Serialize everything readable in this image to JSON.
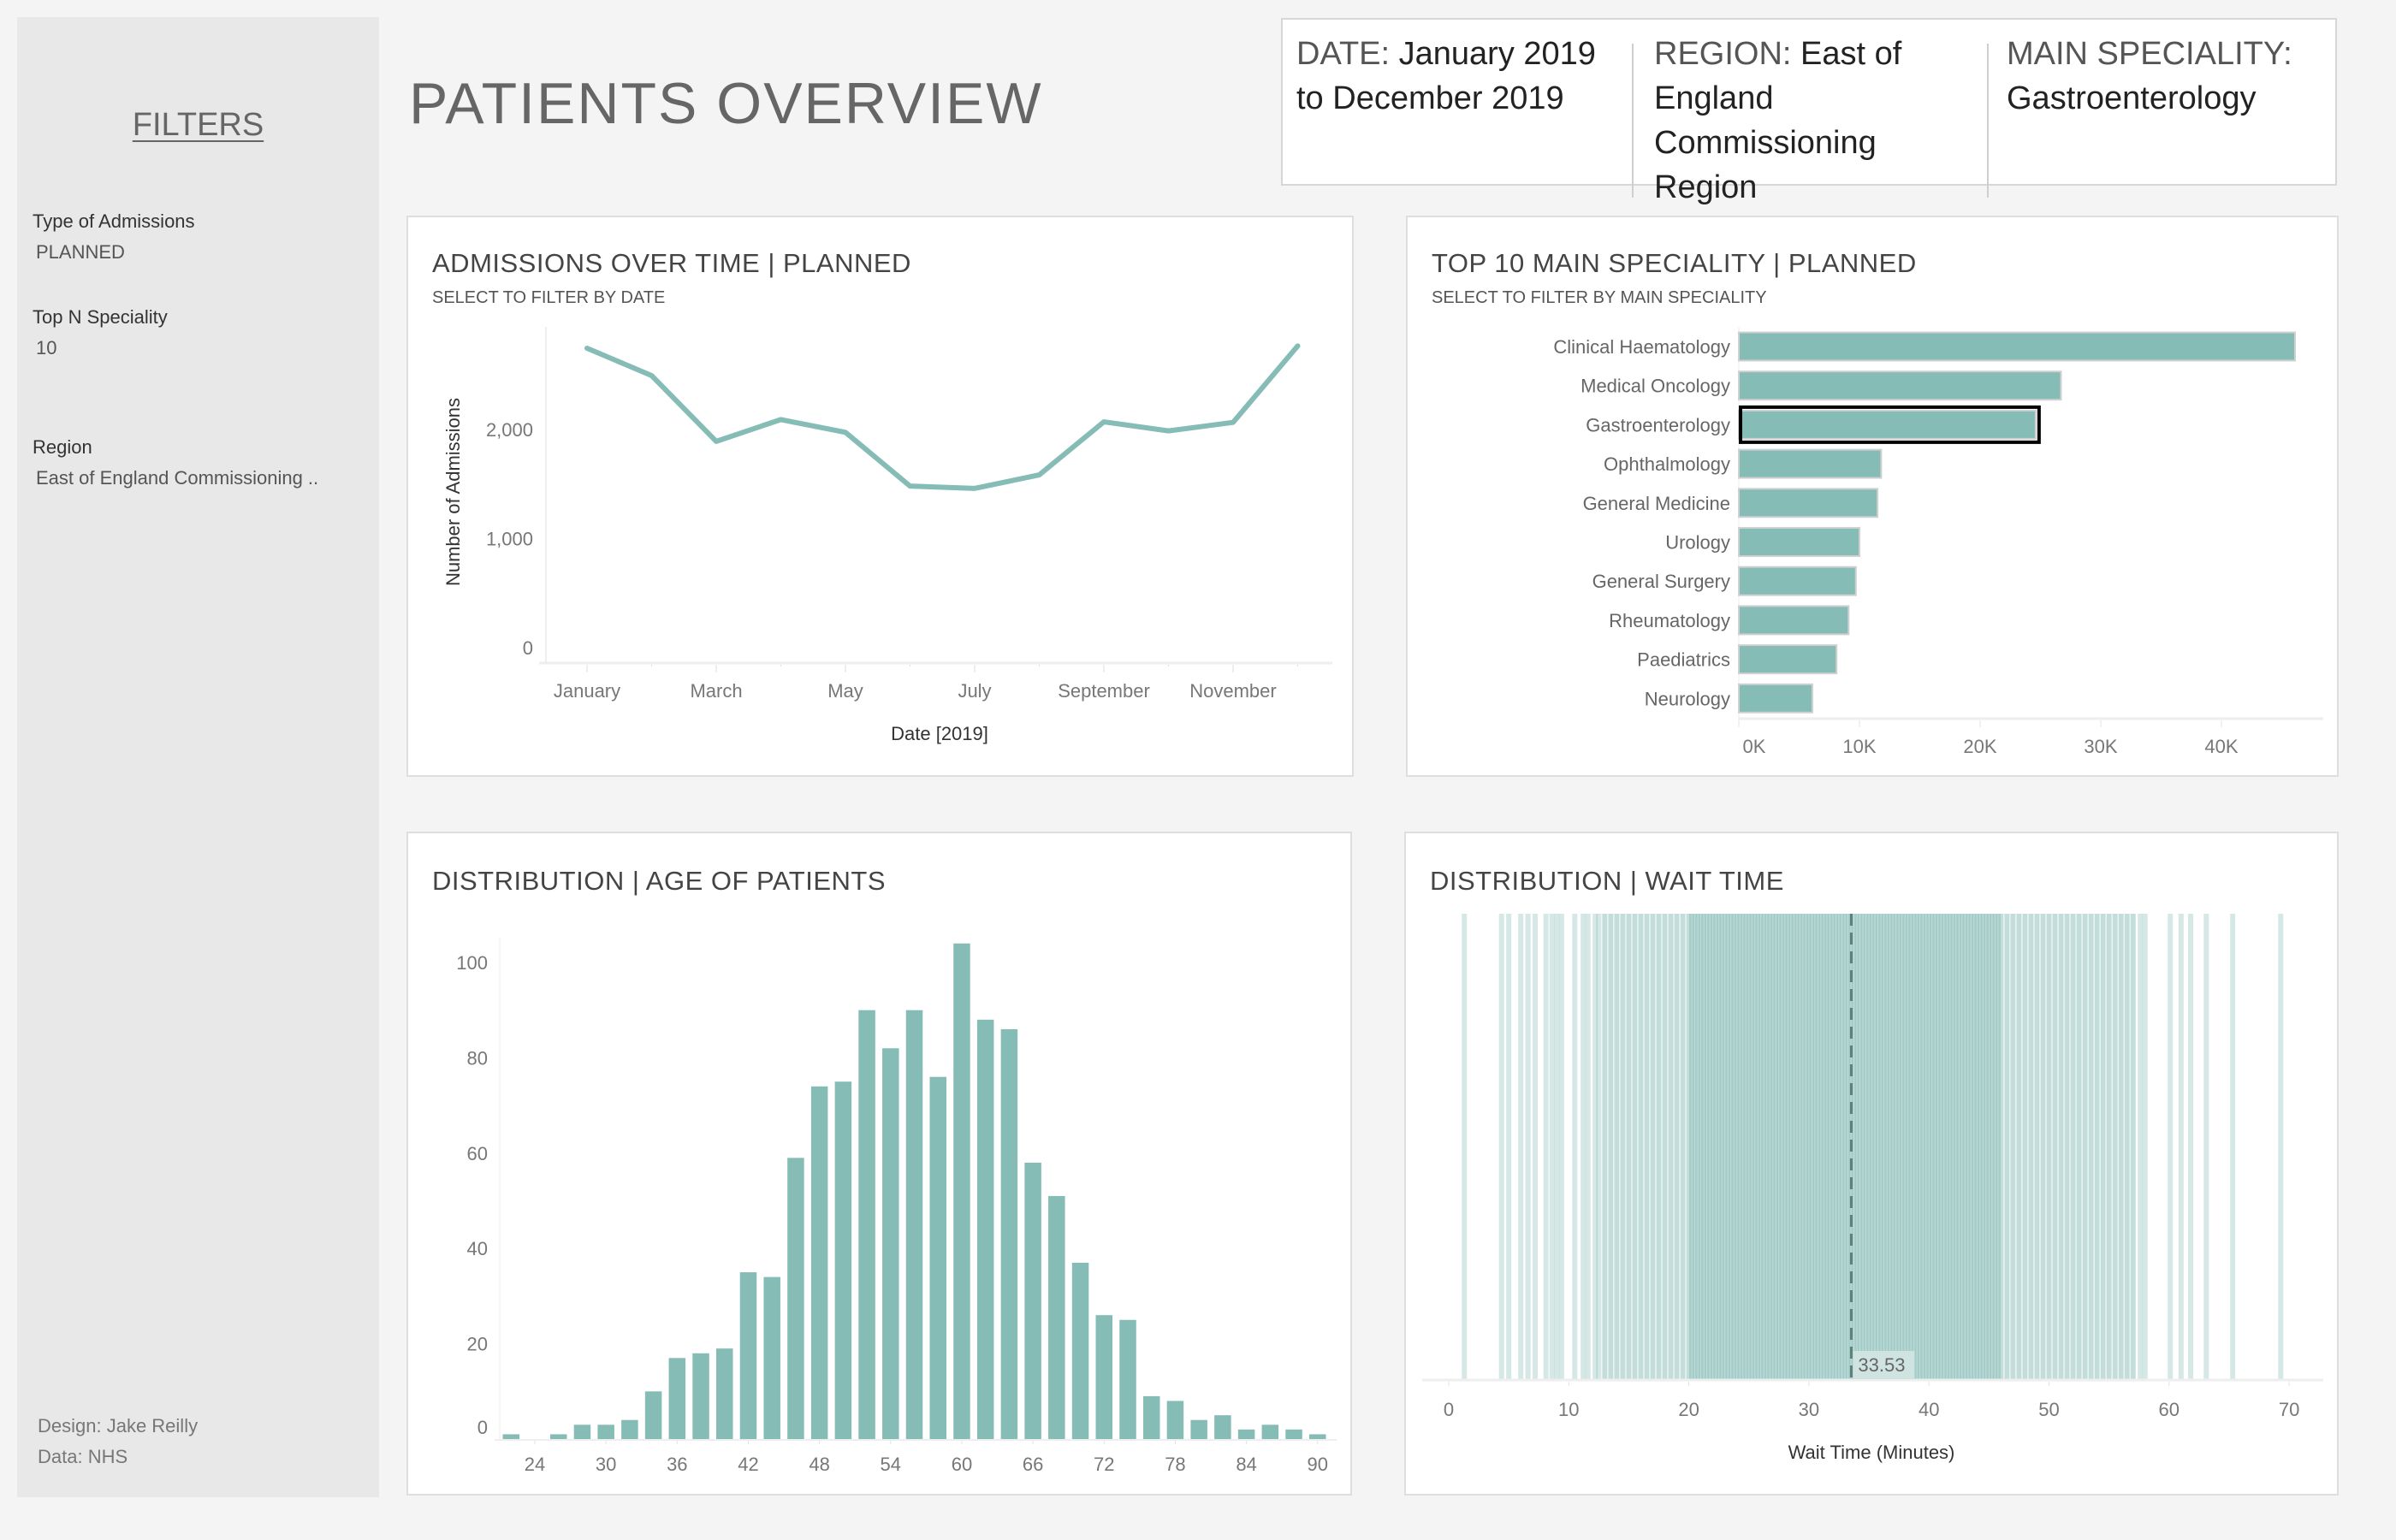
{
  "page": {
    "title": "PATIENTS OVERVIEW"
  },
  "sidebar": {
    "title": "FILTERS",
    "filters": [
      {
        "label": "Type of Admissions",
        "value": "PLANNED"
      },
      {
        "label": "Top N Speciality",
        "value": "10"
      },
      {
        "label": "Region",
        "value": "East of England Commissioning .."
      }
    ],
    "footer": {
      "design": "Design: Jake Reilly",
      "data": "Data: NHS"
    }
  },
  "header": {
    "date": {
      "label": "DATE: ",
      "value": "January 2019 to December 2019"
    },
    "region": {
      "label": "REGION: ",
      "value": "East of England Commissioning Region"
    },
    "speciality": {
      "label": "MAIN SPECIALITY: ",
      "value": "Gastroenterology"
    }
  },
  "colors": {
    "accent": "#86bcb6",
    "selected_outline": "#000000",
    "mean_line": "#5f7f7c"
  },
  "panels": {
    "admissions": {
      "title": "ADMISSIONS OVER TIME | PLANNED",
      "subtitle": "SELECT TO FILTER BY DATE"
    },
    "speciality": {
      "title": "TOP 10 MAIN SPECIALITY | PLANNED",
      "subtitle": "SELECT TO FILTER BY MAIN SPECIALITY"
    },
    "age": {
      "title": "DISTRIBUTION | AGE OF PATIENTS"
    },
    "wait": {
      "title": "DISTRIBUTION | WAIT TIME"
    }
  },
  "chart_data": [
    {
      "id": "admissions",
      "type": "line",
      "x": [
        "January",
        "February",
        "March",
        "April",
        "May",
        "June",
        "July",
        "August",
        "September",
        "October",
        "November",
        "December"
      ],
      "x_tick_labels": [
        "January",
        "March",
        "May",
        "July",
        "September",
        "November"
      ],
      "values": [
        2745,
        2494,
        1891,
        2091,
        1974,
        1481,
        1460,
        1584,
        2070,
        1987,
        2065,
        2766
      ],
      "xlabel": "Date [2019]",
      "ylabel": "Number of Admissions",
      "y_ticks": [
        0,
        1000,
        2000
      ],
      "y_tick_labels": [
        "0",
        "1,000",
        "2,000"
      ],
      "ylim": [
        0,
        2900
      ],
      "grid": false
    },
    {
      "id": "speciality",
      "type": "bar",
      "orientation": "horizontal",
      "categories": [
        "Clinical Haematology",
        "Medical Oncology",
        "Gastroenterology",
        "Ophthalmology",
        "General Medicine",
        "Urology",
        "General Surgery",
        "Rheumatology",
        "Paediatrics",
        "Neurology"
      ],
      "values": [
        46100,
        26700,
        24600,
        11800,
        11500,
        10000,
        9700,
        9100,
        8100,
        6100
      ],
      "selected": "Gastroenterology",
      "x_ticks": [
        0,
        10000,
        20000,
        30000,
        40000
      ],
      "x_tick_labels": [
        "0K",
        "10K",
        "20K",
        "30K",
        "40K"
      ],
      "xlim": [
        0,
        47000
      ],
      "grid": false
    },
    {
      "id": "age",
      "type": "bar",
      "categories": [
        22,
        24,
        26,
        28,
        30,
        32,
        34,
        36,
        38,
        40,
        42,
        44,
        46,
        48,
        50,
        52,
        54,
        56,
        58,
        60,
        62,
        64,
        66,
        68,
        70,
        72,
        74,
        76,
        78,
        80,
        82,
        84,
        86,
        88,
        90
      ],
      "values": [
        1,
        0,
        1,
        3,
        3,
        4,
        10,
        17,
        18,
        19,
        35,
        34,
        59,
        74,
        75,
        90,
        82,
        90,
        76,
        104,
        88,
        86,
        58,
        51,
        37,
        26,
        25,
        9,
        8,
        4,
        5,
        2,
        3,
        2,
        1
      ],
      "x_ticks": [
        24,
        30,
        36,
        42,
        48,
        54,
        60,
        66,
        72,
        78,
        84,
        90
      ],
      "y_ticks": [
        0,
        20,
        40,
        60,
        80,
        100
      ],
      "ylim": [
        0,
        105
      ],
      "grid": false
    },
    {
      "id": "wait",
      "type": "strip",
      "xlabel": "Wait Time (Minutes)",
      "x_ticks": [
        0,
        10,
        20,
        30,
        40,
        50,
        60,
        70
      ],
      "xlim": [
        -1.5,
        72
      ],
      "mean": 33.53,
      "mean_label": "33.53",
      "values": [
        1.3,
        4.4,
        5.0,
        6.0,
        6.6,
        7.2,
        8.1,
        8.6,
        9.0,
        9.4,
        10.5,
        11.2,
        11.6,
        12.2,
        12.5,
        13,
        13.5,
        14,
        14.5,
        15,
        15.5,
        16,
        16.5,
        17,
        17.5,
        18,
        18.5,
        19,
        19.5,
        20,
        20.5,
        21,
        21.5,
        22,
        22.5,
        23,
        23.5,
        24,
        24.5,
        25,
        25.5,
        26,
        26.5,
        27,
        27.5,
        28,
        28.5,
        29,
        29.5,
        30,
        30.5,
        31,
        31.5,
        32,
        32.5,
        33,
        33.5,
        34,
        34.5,
        35,
        35.5,
        36,
        36.5,
        37,
        37.5,
        38,
        38.5,
        39,
        39.5,
        40,
        40.5,
        41,
        41.5,
        42,
        42.5,
        43,
        43.5,
        44,
        44.5,
        45,
        45.5,
        46,
        46.5,
        47,
        47.5,
        48,
        48.5,
        49,
        49.5,
        50,
        50.5,
        51,
        51.5,
        52,
        52.5,
        53,
        53.5,
        54,
        54.5,
        55,
        55.5,
        56,
        56.5,
        57,
        20.25,
        20.75,
        21.25,
        21.75,
        22.25,
        22.75,
        23.25,
        23.75,
        24.25,
        24.75,
        25.25,
        25.75,
        26.25,
        26.75,
        27.25,
        27.75,
        28.25,
        28.75,
        29.25,
        29.75,
        30.25,
        30.75,
        31.25,
        31.75,
        32.25,
        32.75,
        33.25,
        33.75,
        34.25,
        34.75,
        35.25,
        35.75,
        36.25,
        36.75,
        37.25,
        37.75,
        38.25,
        38.75,
        39.25,
        39.75,
        40.25,
        40.75,
        41.25,
        41.75,
        42.25,
        42.75,
        43.25,
        43.75,
        44.25,
        44.75,
        45.25,
        45.75,
        57.6,
        58.0,
        60.1,
        61.0,
        61.8,
        63.1,
        65.3,
        69.3
      ]
    }
  ]
}
